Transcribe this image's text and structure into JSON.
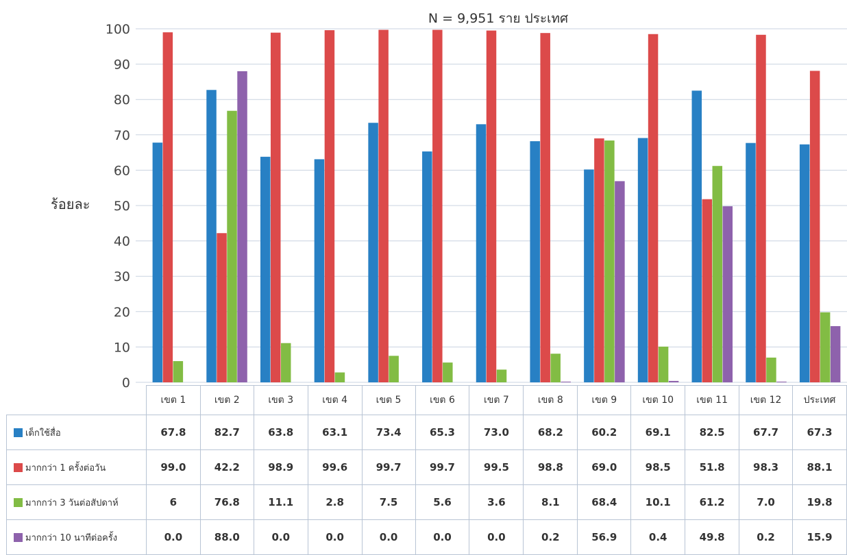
{
  "chart_data": {
    "type": "bar",
    "title": "N = 9,951 ราย ประเทศ",
    "ylabel": "ร้อยละ",
    "ylim": [
      0,
      100
    ],
    "yticks": [
      0,
      10,
      20,
      30,
      40,
      50,
      60,
      70,
      80,
      90,
      100
    ],
    "grid": true,
    "legend": "data-table-left",
    "categories": [
      "เขต 1",
      "เขต 2",
      "เขต 3",
      "เขต 4",
      "เขต 5",
      "เขต 6",
      "เขต 7",
      "เขต 8",
      "เขต 9",
      "เขต 10",
      "เขต 11",
      "เขต 12",
      "ประเทศ"
    ],
    "series": [
      {
        "name": "เด็กใช้สื่อ",
        "color": "#2880c4",
        "values": [
          67.8,
          82.7,
          63.8,
          63.1,
          73.4,
          65.3,
          73.0,
          68.2,
          60.2,
          69.1,
          82.5,
          67.7,
          67.3
        ],
        "labels": [
          "67.8",
          "82.7",
          "63.8",
          "63.1",
          "73.4",
          "65.3",
          "73.0",
          "68.2",
          "60.2",
          "69.1",
          "82.5",
          "67.7",
          "67.3"
        ]
      },
      {
        "name": "มากกว่า 1 ครั้งต่อวัน",
        "color": "#dc4a4a",
        "values": [
          99.0,
          42.2,
          98.9,
          99.6,
          99.7,
          99.7,
          99.5,
          98.8,
          69.0,
          98.5,
          51.8,
          98.3,
          88.1
        ],
        "labels": [
          "99.0",
          "42.2",
          "98.9",
          "99.6",
          "99.7",
          "99.7",
          "99.5",
          "98.8",
          "69.0",
          "98.5",
          "51.8",
          "98.3",
          "88.1"
        ]
      },
      {
        "name": "มากกว่า 3 วันต่อสัปดาห์",
        "color": "#82bc44",
        "values": [
          6,
          76.8,
          11.1,
          2.8,
          7.5,
          5.6,
          3.6,
          8.1,
          68.4,
          10.1,
          61.2,
          7.0,
          19.8
        ],
        "labels": [
          "6",
          "76.8",
          "11.1",
          "2.8",
          "7.5",
          "5.6",
          "3.6",
          "8.1",
          "68.4",
          "10.1",
          "61.2",
          "7.0",
          "19.8"
        ]
      },
      {
        "name": "มากกว่า 10 นาทีต่อครั้ง",
        "color": "#8e62ac",
        "values": [
          0.0,
          88.0,
          0.0,
          0.0,
          0.0,
          0.0,
          0.0,
          0.2,
          56.9,
          0.4,
          49.8,
          0.2,
          15.9
        ],
        "labels": [
          "0.0",
          "88.0",
          "0.0",
          "0.0",
          "0.0",
          "0.0",
          "0.0",
          "0.2",
          "56.9",
          "0.4",
          "49.8",
          "0.2",
          "15.9"
        ]
      }
    ]
  }
}
